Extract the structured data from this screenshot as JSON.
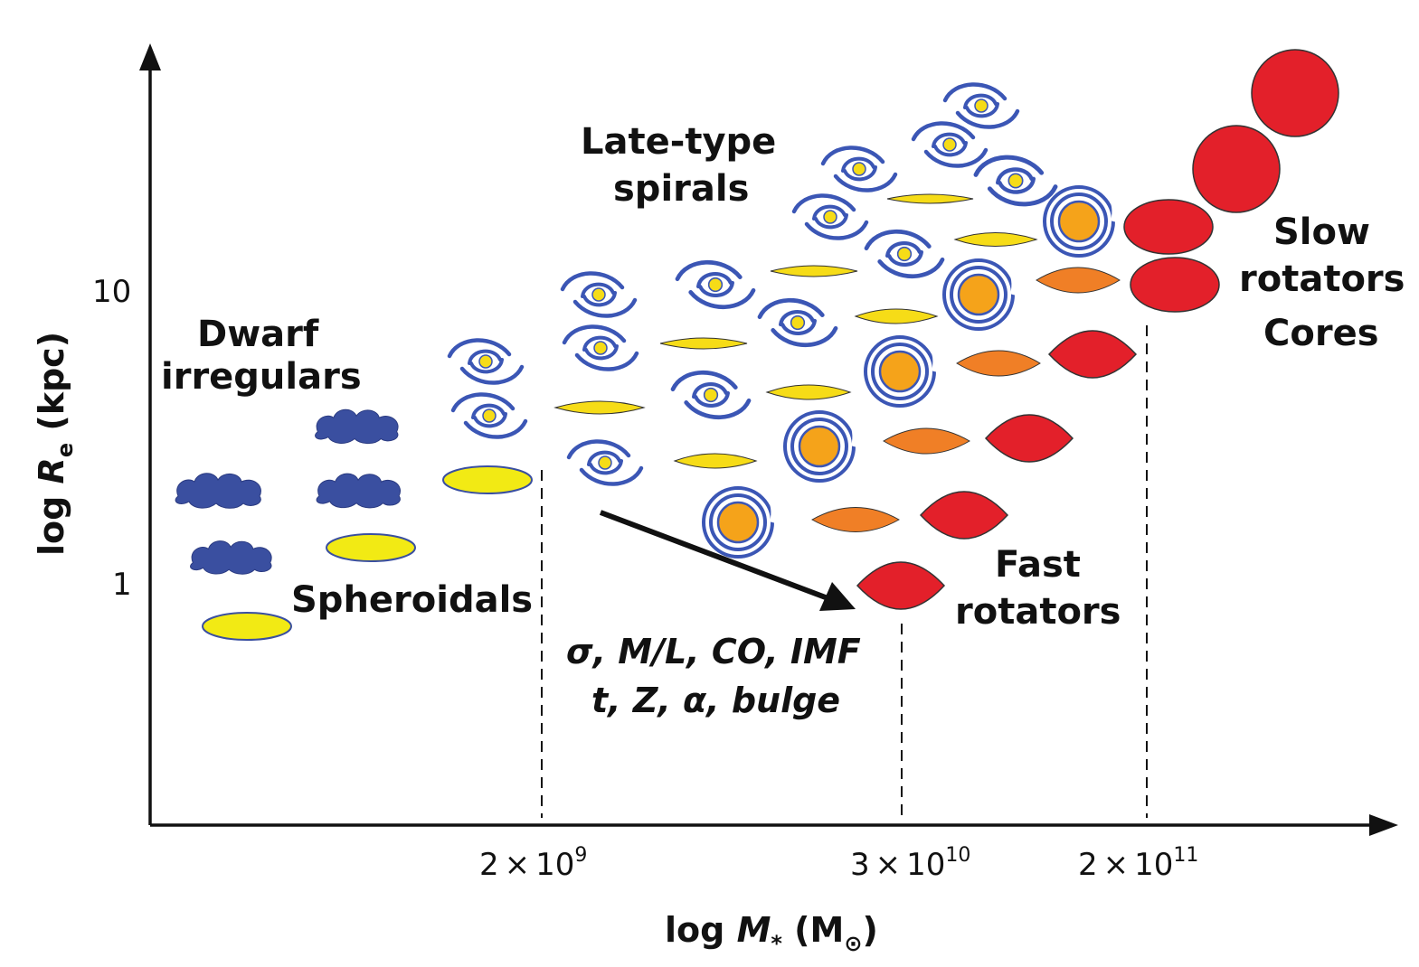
{
  "axes": {
    "y_label_prefix": "log ",
    "y_label_var": "R",
    "y_label_sub": "e",
    "y_label_suffix": " (kpc)",
    "y_ticks": [
      "10",
      "1"
    ],
    "x_label_prefix": "log ",
    "x_label_var": "M",
    "x_label_star": "*",
    "x_label_unit_open": " (M",
    "x_label_sun": "⊙",
    "x_label_unit_close": ")",
    "x_ticks": [
      {
        "mantissa": "2",
        "times": "×",
        "base": "10",
        "exp": "9"
      },
      {
        "mantissa": "3",
        "times": "×",
        "base": "10",
        "exp": "10"
      },
      {
        "mantissa": "2",
        "times": "×",
        "base": "10",
        "exp": "11"
      }
    ]
  },
  "labels": {
    "dwarf_line1": "Dwarf",
    "dwarf_line2": "irregulars",
    "spheroidals": "Spheroidals",
    "late_line1": "Late-type",
    "late_line2": "spirals",
    "slow_line1": "Slow",
    "slow_line2": "rotators",
    "slow_line3": "Cores",
    "fast_line1": "Fast",
    "fast_line2": "rotators",
    "trend_line1": "σ, M/L, CO, IMF",
    "trend_line2": "t, Z, α, bulge"
  },
  "colors": {
    "dwarf_blue": "#3a4fa0",
    "spheroid_yellow": "#f2ea14",
    "spiral_blue": "#3b56b5",
    "bulge_yellow": "#f6dc17",
    "bulge_orange": "#f5a31a",
    "lens_orange": "#f07f26",
    "red": "#e3202a"
  }
}
